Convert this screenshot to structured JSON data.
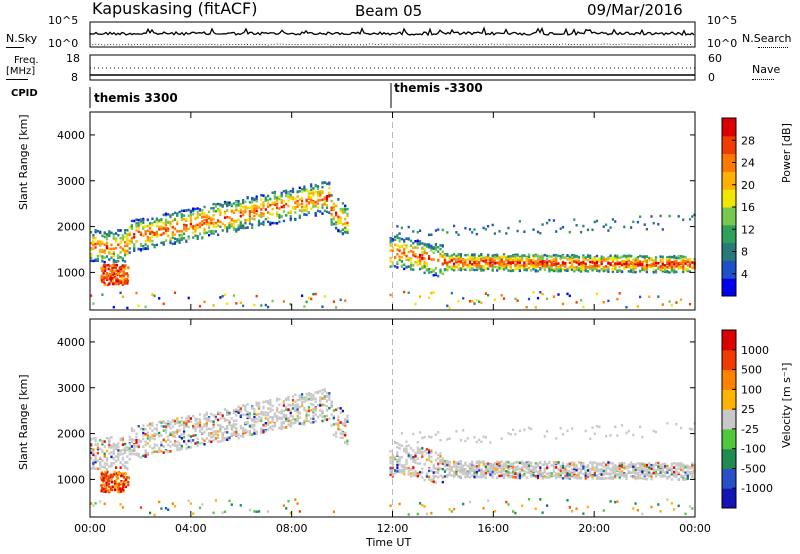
{
  "header": {
    "station": "Kapuskasing (fitACF)",
    "beam": "Beam 05",
    "date": "09/Mar/2016"
  },
  "side_labels": {
    "nsky": "N.Sky",
    "freq": "Freq.",
    "freq_unit": "[MHz]",
    "cpid": "CPID",
    "nsearch": "N.Search",
    "nave": "Nave"
  },
  "cpid_segments": [
    "themis 3300",
    "themis -3300"
  ],
  "noise_panel": {
    "left_ticks": [
      "10^5",
      "10^0"
    ],
    "right_ticks": [
      "10^5",
      "10^0"
    ]
  },
  "freq_panel": {
    "left_ticks": [
      "18",
      "8"
    ],
    "right_ticks": [
      "60",
      "0"
    ]
  },
  "chart_data": [
    {
      "type": "heatmap",
      "name_shown": "",
      "ylabel": "Slant Range [km]",
      "yticks": [
        1000,
        2000,
        3000,
        4000
      ],
      "ylim": [
        180,
        4500
      ],
      "colorbar_label": "Power [dB]",
      "colorbar_ticks": [
        "28",
        "24",
        "20",
        "16",
        "12",
        "8",
        "4"
      ],
      "colorbar_colors": [
        "#0000ee",
        "#1e50c8",
        "#287a7a",
        "#2ea05a",
        "#78c850",
        "#f0e600",
        "#ffb000",
        "#ff7800",
        "#f03c00",
        "#dc0000"
      ]
    },
    {
      "type": "heatmap",
      "ylabel": "Slant Range [km]",
      "yticks": [
        1000,
        2000,
        3000,
        4000
      ],
      "ylim": [
        180,
        4500
      ],
      "xlabel": "Time UT",
      "xticks": [
        "00:00",
        "04:00",
        "08:00",
        "12:00",
        "16:00",
        "20:00",
        "00:00"
      ],
      "colorbar_label": "Velocity  [m s⁻¹]",
      "colorbar_ticks": [
        "1000",
        "500",
        "100",
        "25",
        "-25",
        "-100",
        "-500",
        "-1000"
      ],
      "colorbar_colors": [
        "#1414b4",
        "#2850c8",
        "#1e8c50",
        "#50c83c",
        "#c8c8c8",
        "#ffb400",
        "#ff8200",
        "#f03c00",
        "#dc0000"
      ]
    }
  ]
}
